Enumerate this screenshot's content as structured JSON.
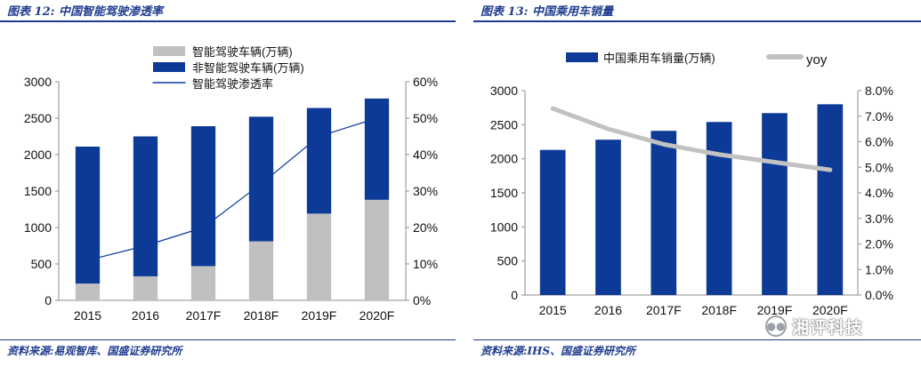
{
  "left_panel": {
    "title": "图表 12:  中国智能驾驶渗透率",
    "source": "资料来源:易观智库、国盛证券研究所"
  },
  "right_panel": {
    "title": "图表 13:  中国乘用车销量",
    "source": "资料来源:IHS、国盛证券研究所"
  },
  "watermark": {
    "text": "湘评科技",
    "icon": "wechat-icon"
  },
  "colors": {
    "blue": "#0c3a96",
    "gray": "#c0c0c0",
    "line_gray": "#c2c2c2",
    "title_blue": "#1f3c8f"
  },
  "chart_data": [
    {
      "type": "bar",
      "stacked": true,
      "categories": [
        "2015",
        "2016",
        "2017F",
        "2018F",
        "2019F",
        "2020F"
      ],
      "series": [
        {
          "name": "智能驾驶车辆(万辆)",
          "kind": "bar",
          "axis": "left",
          "color": "#c0c0c0",
          "values": [
            230,
            330,
            470,
            810,
            1190,
            1380
          ]
        },
        {
          "name": "非智能驾驶车辆(万辆)",
          "kind": "bar",
          "axis": "left",
          "color": "#0c3a96",
          "values": [
            1880,
            1920,
            1920,
            1710,
            1450,
            1390
          ]
        },
        {
          "name": "智能驾驶渗透率",
          "kind": "line",
          "axis": "right",
          "color": "#0c3a96",
          "values": [
            11,
            15,
            20,
            32,
            45,
            50
          ]
        }
      ],
      "y_left": {
        "min": 0,
        "max": 3000,
        "step": 500,
        "ticks": [
          "0",
          "500",
          "1000",
          "1500",
          "2000",
          "2500",
          "3000"
        ]
      },
      "y_right": {
        "min": 0,
        "max": 60,
        "step": 10,
        "ticks": [
          "0%",
          "10%",
          "20%",
          "30%",
          "40%",
          "50%",
          "60%"
        ]
      },
      "legend": "top-center",
      "grid": false
    },
    {
      "type": "bar",
      "categories": [
        "2015",
        "2016",
        "2017F",
        "2018F",
        "2019F",
        "2020F"
      ],
      "series": [
        {
          "name": "中国乘用车销量(万辆)",
          "kind": "bar",
          "axis": "left",
          "color": "#0c3a96",
          "values": [
            2130,
            2280,
            2410,
            2540,
            2670,
            2800
          ]
        },
        {
          "name": "yoy",
          "kind": "line",
          "axis": "right",
          "color": "#c2c2c2",
          "values": [
            7.3,
            6.5,
            5.9,
            5.5,
            5.2,
            4.9
          ]
        }
      ],
      "y_left": {
        "min": 0,
        "max": 3000,
        "step": 500,
        "ticks": [
          "0",
          "500",
          "1000",
          "1500",
          "2000",
          "2500",
          "3000"
        ]
      },
      "y_right": {
        "min": 0,
        "max": 8,
        "step": 1,
        "ticks": [
          "0.0%",
          "1.0%",
          "2.0%",
          "3.0%",
          "4.0%",
          "5.0%",
          "6.0%",
          "7.0%",
          "8.0%"
        ]
      },
      "legend": "top-center",
      "grid": false
    }
  ]
}
